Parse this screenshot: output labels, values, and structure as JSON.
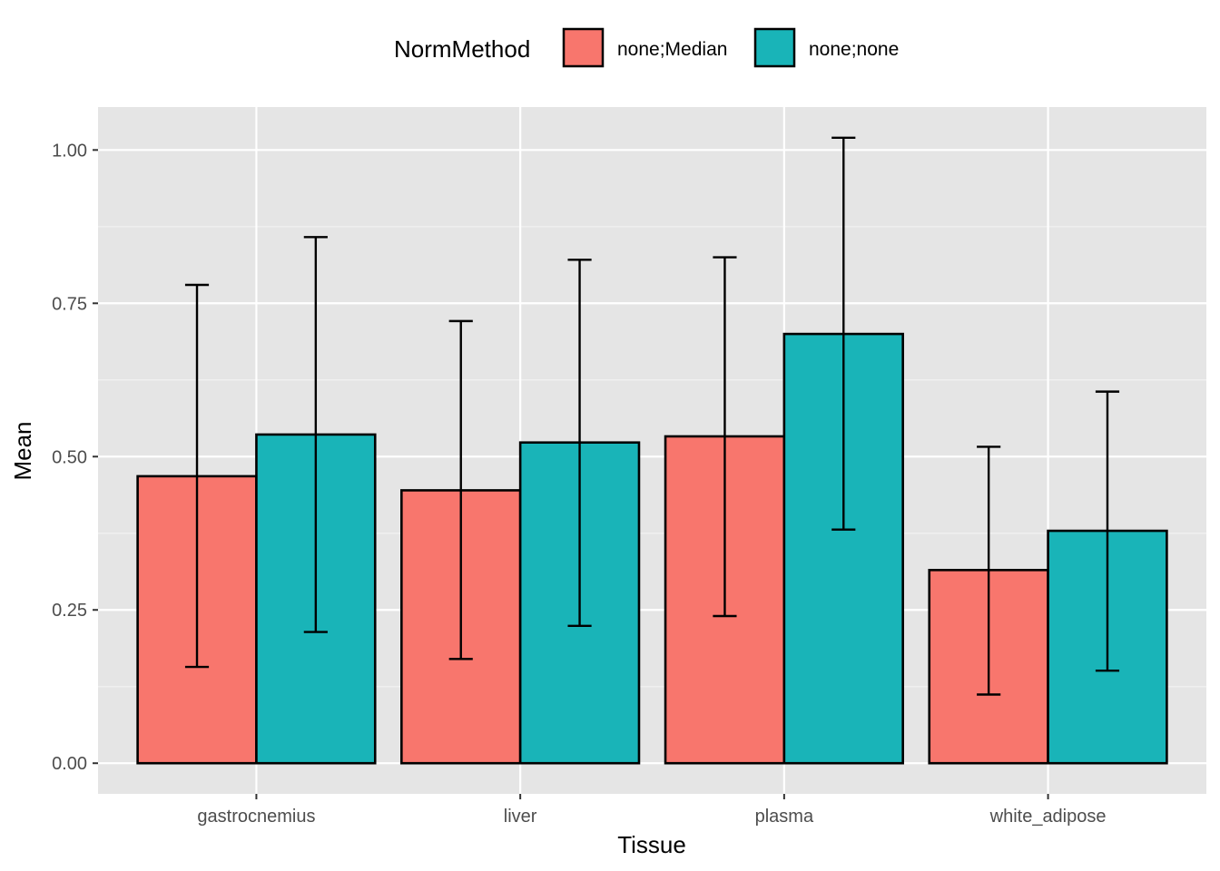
{
  "chart_data": {
    "type": "bar",
    "xlabel": "Tissue",
    "ylabel": "Mean",
    "categories": [
      "gastrocnemius",
      "liver",
      "plasma",
      "white_adipose"
    ],
    "ylim": [
      -0.05,
      1.07
    ],
    "yticks": [
      0.0,
      0.25,
      0.5,
      0.75,
      1.0
    ],
    "ytick_labels": [
      "0.00",
      "0.25",
      "0.50",
      "0.75",
      "1.00"
    ],
    "legend": {
      "title": "NormMethod",
      "position": "top"
    },
    "grid": true,
    "series": [
      {
        "name": "none;Median",
        "color": "#F8766D",
        "values": [
          0.468,
          0.445,
          0.533,
          0.315
        ],
        "error_low": [
          0.157,
          0.17,
          0.24,
          0.112
        ],
        "error_high": [
          0.78,
          0.721,
          0.825,
          0.516
        ]
      },
      {
        "name": "none;none",
        "color": "#19B4B8",
        "values": [
          0.536,
          0.523,
          0.7,
          0.379
        ],
        "error_low": [
          0.214,
          0.224,
          0.381,
          0.151
        ],
        "error_high": [
          0.858,
          0.821,
          1.02,
          0.606
        ]
      }
    ]
  }
}
